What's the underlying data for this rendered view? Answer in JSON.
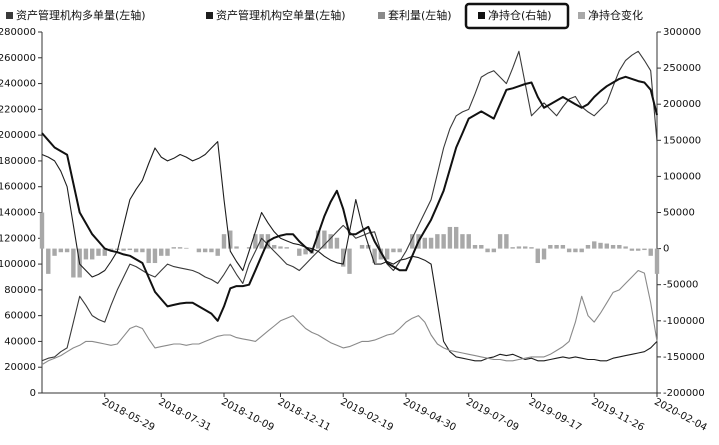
{
  "chart_data": {
    "type": "line",
    "categories": [
      null,
      null,
      null,
      null,
      null,
      null,
      null,
      null,
      null,
      null,
      "2018-05-29",
      null,
      null,
      null,
      null,
      null,
      null,
      null,
      null,
      "2018-07-31",
      null,
      null,
      null,
      null,
      null,
      null,
      null,
      null,
      null,
      "2018-10-09",
      null,
      null,
      null,
      null,
      null,
      null,
      null,
      null,
      "2018-12-11",
      null,
      null,
      null,
      null,
      null,
      null,
      null,
      null,
      null,
      "2019-02-19",
      null,
      null,
      null,
      null,
      null,
      null,
      null,
      null,
      null,
      "2019-04-30",
      null,
      null,
      null,
      null,
      null,
      null,
      null,
      null,
      null,
      "2019-07-09",
      null,
      null,
      null,
      null,
      null,
      null,
      null,
      null,
      null,
      "2019-09-17",
      null,
      null,
      null,
      null,
      null,
      null,
      null,
      null,
      null,
      "2019-11-26",
      null,
      null,
      null,
      null,
      null,
      null,
      null,
      null,
      null,
      "2020-02-04"
    ],
    "series": [
      {
        "name": "资产管理机构多单量(左轴)",
        "color": "#3a3a3a",
        "type": "line",
        "values": [
          25000,
          27000,
          28000,
          32000,
          35000,
          55000,
          75000,
          68000,
          60000,
          57000,
          55000,
          68000,
          80000,
          90000,
          100000,
          98000,
          95000,
          92000,
          90000,
          95000,
          100000,
          98000,
          97000,
          96000,
          95000,
          93000,
          90000,
          88000,
          85000,
          92000,
          100000,
          92000,
          85000,
          100000,
          110000,
          120000,
          115000,
          110000,
          105000,
          100000,
          98000,
          95000,
          100000,
          105000,
          110000,
          115000,
          120000,
          125000,
          130000,
          125000,
          120000,
          122000,
          124000,
          125000,
          110000,
          100000,
          95000,
          102000,
          110000,
          120000,
          130000,
          140000,
          150000,
          170000,
          190000,
          205000,
          215000,
          218000,
          220000,
          232000,
          245000,
          248000,
          250000,
          245000,
          240000,
          252000,
          265000,
          240000,
          215000,
          220000,
          225000,
          220000,
          215000,
          222000,
          228000,
          230000,
          222000,
          218000,
          215000,
          220000,
          225000,
          238000,
          250000,
          258000,
          262000,
          265000,
          258000,
          250000,
          195000
        ]
      },
      {
        "name": "资产管理机构空单量(左轴)",
        "color": "#1e1e1e",
        "type": "line",
        "values": [
          185000,
          183000,
          180000,
          172000,
          160000,
          130000,
          100000,
          95000,
          90000,
          92000,
          95000,
          102000,
          110000,
          130000,
          150000,
          158000,
          165000,
          178000,
          190000,
          183000,
          180000,
          182000,
          185000,
          183000,
          180000,
          182000,
          185000,
          190000,
          195000,
          150000,
          110000,
          102000,
          95000,
          110000,
          125000,
          140000,
          132000,
          125000,
          120000,
          118000,
          116000,
          115000,
          113000,
          112000,
          110000,
          106000,
          103000,
          101000,
          100000,
          125000,
          150000,
          130000,
          115000,
          100000,
          100000,
          102000,
          100000,
          103000,
          104000,
          106000,
          105000,
          103000,
          100000,
          70000,
          40000,
          32000,
          28000,
          27000,
          26000,
          25000,
          25000,
          27000,
          28000,
          30000,
          29000,
          30000,
          28000,
          26000,
          27000,
          25000,
          25000,
          26000,
          27000,
          28000,
          27000,
          28000,
          27000,
          26000,
          26000,
          25000,
          25000,
          27000,
          28000,
          29000,
          30000,
          31000,
          32000,
          35000,
          40000
        ]
      },
      {
        "name": "套利量(左轴)",
        "color": "#8a8a8a",
        "type": "line",
        "values": [
          22000,
          25000,
          27000,
          29000,
          32000,
          35000,
          37000,
          40000,
          40000,
          39000,
          38000,
          37000,
          38000,
          44000,
          50000,
          52000,
          50000,
          42000,
          35000,
          36000,
          37000,
          38000,
          38000,
          37000,
          38000,
          38000,
          40000,
          42000,
          44000,
          45000,
          45000,
          43000,
          42000,
          41000,
          40000,
          44000,
          48000,
          52000,
          56000,
          58000,
          60000,
          55000,
          50000,
          47000,
          45000,
          42000,
          39000,
          37000,
          35000,
          36000,
          38000,
          40000,
          40000,
          41000,
          43000,
          45000,
          46000,
          50000,
          55000,
          58000,
          60000,
          55000,
          45000,
          38000,
          35000,
          33000,
          32000,
          31000,
          30000,
          29000,
          28000,
          27000,
          26000,
          26000,
          25000,
          25000,
          26000,
          27000,
          28000,
          28000,
          28000,
          30000,
          33000,
          36000,
          40000,
          55000,
          75000,
          60000,
          55000,
          62000,
          70000,
          78000,
          80000,
          85000,
          90000,
          95000,
          93000,
          70000,
          40000
        ]
      },
      {
        "name": "净持仓(右轴)",
        "color": "#111111",
        "type": "line",
        "axis": "y2",
        "values": [
          160000,
          150000,
          140000,
          135000,
          130000,
          90000,
          50000,
          35000,
          20000,
          10000,
          0,
          -3000,
          -5000,
          -8000,
          -10000,
          -15000,
          -20000,
          -40000,
          -60000,
          -70000,
          -80000,
          -78000,
          -76000,
          -75000,
          -75000,
          -80000,
          -85000,
          -90000,
          -100000,
          -80000,
          -55000,
          -52000,
          -52000,
          -50000,
          -30000,
          -10000,
          10000,
          15000,
          18000,
          20000,
          20000,
          10000,
          2000,
          -5000,
          20000,
          45000,
          65000,
          80000,
          55000,
          20000,
          20000,
          25000,
          30000,
          10000,
          -5000,
          -20000,
          -25000,
          -30000,
          -30000,
          -10000,
          10000,
          25000,
          40000,
          60000,
          80000,
          110000,
          140000,
          160000,
          180000,
          185000,
          190000,
          185000,
          180000,
          200000,
          220000,
          222000,
          225000,
          228000,
          230000,
          210000,
          195000,
          200000,
          205000,
          210000,
          205000,
          200000,
          195000,
          200000,
          210000,
          218000,
          225000,
          230000,
          235000,
          238000,
          235000,
          232000,
          230000,
          220000,
          185000
        ]
      },
      {
        "name": "净持仓变化",
        "color": "#a8a8a8",
        "type": "bar",
        "axis": "y2",
        "values": [
          50000,
          -35000,
          -10000,
          -5000,
          -5000,
          -40000,
          -40000,
          -15000,
          -15000,
          -10000,
          -10000,
          -3000,
          -2000,
          -3000,
          -2000,
          -5000,
          -5000,
          -20000,
          -20000,
          -10000,
          -10000,
          2000,
          2000,
          1000,
          0,
          -5000,
          -5000,
          -5000,
          -10000,
          20000,
          25000,
          3000,
          0,
          2000,
          20000,
          20000,
          20000,
          5000,
          3000,
          2000,
          0,
          -10000,
          -8000,
          -7000,
          25000,
          25000,
          20000,
          15000,
          -25000,
          -35000,
          0,
          5000,
          5000,
          -20000,
          -15000,
          -15000,
          -5000,
          -5000,
          0,
          20000,
          20000,
          15000,
          15000,
          20000,
          20000,
          30000,
          30000,
          20000,
          20000,
          5000,
          5000,
          -5000,
          -5000,
          20000,
          20000,
          2000,
          3000,
          3000,
          2000,
          -20000,
          -15000,
          5000,
          5000,
          5000,
          -5000,
          -5000,
          -5000,
          5000,
          10000,
          8000,
          7000,
          5000,
          5000,
          3000,
          -3000,
          -3000,
          -2000,
          -10000,
          -35000
        ]
      }
    ],
    "ylim": [
      0,
      280000
    ],
    "yticks": [
      0,
      20000,
      40000,
      60000,
      80000,
      100000,
      120000,
      140000,
      160000,
      180000,
      200000,
      220000,
      240000,
      260000,
      280000
    ],
    "y2lim": [
      -200000,
      300000
    ],
    "y2ticks": [
      -200000,
      -150000,
      -100000,
      -50000,
      0,
      50000,
      100000,
      150000,
      200000,
      250000,
      300000
    ]
  }
}
